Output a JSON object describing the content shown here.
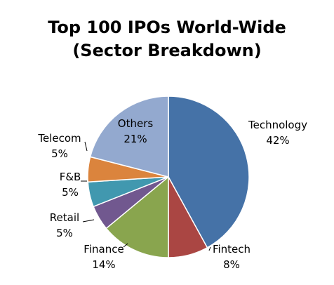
{
  "chart_data": {
    "type": "pie",
    "title": [
      "Top 100 IPOs World-Wide",
      "(Sector Breakdown)"
    ],
    "slices": [
      {
        "label": "Technology",
        "value": 42,
        "value_text": "42%",
        "color": "#4572A7"
      },
      {
        "label": "Fintech",
        "value": 8,
        "value_text": "8%",
        "color": "#AA4643"
      },
      {
        "label": "Finance",
        "value": 14,
        "value_text": "14%",
        "color": "#89A54E"
      },
      {
        "label": "Retail",
        "value": 5,
        "value_text": "5%",
        "color": "#71588F"
      },
      {
        "label": "F&B",
        "value": 5,
        "value_text": "5%",
        "color": "#4198AF"
      },
      {
        "label": "Telecom",
        "value": 5,
        "value_text": "5%",
        "color": "#DB843D"
      },
      {
        "label": "Others",
        "value": 21,
        "value_text": "21%",
        "color": "#93A9CF"
      }
    ],
    "legend": false
  }
}
